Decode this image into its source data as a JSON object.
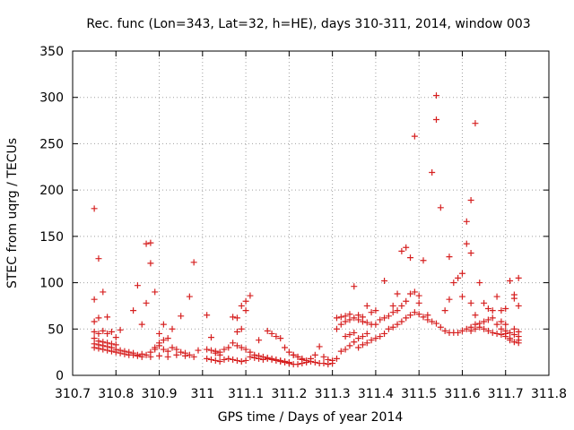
{
  "chart_data": {
    "type": "scatter",
    "title": "Rec. func (Lon=343, Lat=32, h=HE), days 310-311, 2014, window 003",
    "xlabel": "GPS time / Days of year 2014",
    "ylabel": "STEC from uqrg / TECUs",
    "xlim": [
      310.7,
      311.8
    ],
    "ylim": [
      0,
      350
    ],
    "xticks": [
      310.7,
      310.8,
      310.9,
      311.0,
      311.1,
      311.2,
      311.3,
      311.4,
      311.5,
      311.6,
      311.7,
      311.8
    ],
    "xtick_labels": [
      "310.7",
      "310.8",
      "310.9",
      "311",
      "311.1",
      "311.2",
      "311.3",
      "311.4",
      "311.5",
      "311.6",
      "311.7",
      "311.8"
    ],
    "yticks": [
      0,
      50,
      100,
      150,
      200,
      250,
      300,
      350
    ],
    "ytick_labels": [
      "0",
      "50",
      "100",
      "150",
      "200",
      "250",
      "300",
      "350"
    ],
    "grid": true,
    "marker": "+",
    "color": "#d62020",
    "series": [
      {
        "name": "STEC",
        "points": [
          [
            310.75,
            180
          ],
          [
            310.76,
            126
          ],
          [
            310.77,
            90
          ],
          [
            310.75,
            82
          ],
          [
            310.78,
            63
          ],
          [
            310.76,
            62
          ],
          [
            310.75,
            58
          ],
          [
            310.77,
            48
          ],
          [
            310.75,
            47
          ],
          [
            310.76,
            45
          ],
          [
            310.79,
            47
          ],
          [
            310.78,
            45
          ],
          [
            310.81,
            49
          ],
          [
            310.8,
            41
          ],
          [
            310.75,
            40
          ],
          [
            310.76,
            37
          ],
          [
            310.77,
            36
          ],
          [
            310.78,
            35
          ],
          [
            310.79,
            34
          ],
          [
            310.8,
            33
          ],
          [
            310.75,
            34
          ],
          [
            310.76,
            33
          ],
          [
            310.77,
            32
          ],
          [
            310.78,
            31
          ],
          [
            310.79,
            30
          ],
          [
            310.8,
            28
          ],
          [
            310.81,
            27
          ],
          [
            310.82,
            26
          ],
          [
            310.83,
            25
          ],
          [
            310.84,
            24
          ],
          [
            310.75,
            30
          ],
          [
            310.76,
            29
          ],
          [
            310.77,
            28
          ],
          [
            310.78,
            27
          ],
          [
            310.79,
            26
          ],
          [
            310.8,
            25
          ],
          [
            310.81,
            24
          ],
          [
            310.82,
            23
          ],
          [
            310.83,
            22
          ],
          [
            310.84,
            22
          ],
          [
            310.85,
            22
          ],
          [
            310.86,
            23
          ],
          [
            310.85,
            21
          ],
          [
            310.86,
            20
          ],
          [
            310.87,
            22
          ],
          [
            310.88,
            25
          ],
          [
            310.89,
            30
          ],
          [
            310.9,
            35
          ],
          [
            310.91,
            38
          ],
          [
            310.92,
            40
          ],
          [
            310.84,
            70
          ],
          [
            310.85,
            97
          ],
          [
            310.86,
            55
          ],
          [
            310.87,
            78
          ],
          [
            310.87,
            142
          ],
          [
            310.88,
            143
          ],
          [
            310.88,
            121
          ],
          [
            310.89,
            90
          ],
          [
            310.9,
            45
          ],
          [
            310.91,
            55
          ],
          [
            310.89,
            28
          ],
          [
            310.9,
            32
          ],
          [
            310.91,
            28
          ],
          [
            310.92,
            26
          ],
          [
            310.93,
            30
          ],
          [
            310.94,
            28
          ],
          [
            310.95,
            25
          ],
          [
            310.96,
            24
          ],
          [
            310.97,
            22
          ],
          [
            310.98,
            20
          ],
          [
            310.88,
            20
          ],
          [
            310.9,
            21
          ],
          [
            310.92,
            20
          ],
          [
            310.94,
            22
          ],
          [
            310.96,
            21
          ],
          [
            310.93,
            50
          ],
          [
            310.95,
            64
          ],
          [
            310.97,
            85
          ],
          [
            310.98,
            122
          ],
          [
            310.99,
            27
          ],
          [
            311.01,
            65
          ],
          [
            311.02,
            41
          ],
          [
            311.01,
            28
          ],
          [
            311.02,
            27
          ],
          [
            311.03,
            26
          ],
          [
            311.04,
            25
          ],
          [
            311.05,
            28
          ],
          [
            311.06,
            30
          ],
          [
            311.03,
            24
          ],
          [
            311.04,
            22
          ],
          [
            311.01,
            18
          ],
          [
            311.02,
            17
          ],
          [
            311.03,
            16
          ],
          [
            311.04,
            15
          ],
          [
            311.05,
            17
          ],
          [
            311.06,
            18
          ],
          [
            311.07,
            17
          ],
          [
            311.08,
            16
          ],
          [
            311.09,
            15
          ],
          [
            311.1,
            16
          ],
          [
            311.07,
            63
          ],
          [
            311.08,
            62
          ],
          [
            311.08,
            47
          ],
          [
            311.09,
            50
          ],
          [
            311.1,
            80
          ],
          [
            311.11,
            86
          ],
          [
            311.1,
            70
          ],
          [
            311.09,
            75
          ],
          [
            311.07,
            35
          ],
          [
            311.08,
            32
          ],
          [
            311.09,
            30
          ],
          [
            311.1,
            28
          ],
          [
            311.11,
            25
          ],
          [
            311.12,
            22
          ],
          [
            311.13,
            21
          ],
          [
            311.14,
            20
          ],
          [
            311.15,
            19
          ],
          [
            311.16,
            18
          ],
          [
            311.17,
            17
          ],
          [
            311.18,
            16
          ],
          [
            311.11,
            20
          ],
          [
            311.12,
            19
          ],
          [
            311.13,
            18
          ],
          [
            311.14,
            17
          ],
          [
            311.15,
            18
          ],
          [
            311.16,
            17
          ],
          [
            311.17,
            16
          ],
          [
            311.18,
            15
          ],
          [
            311.19,
            14
          ],
          [
            311.2,
            14
          ],
          [
            311.13,
            38
          ],
          [
            311.15,
            48
          ],
          [
            311.16,
            45
          ],
          [
            311.17,
            42
          ],
          [
            311.18,
            40
          ],
          [
            311.19,
            30
          ],
          [
            311.2,
            25
          ],
          [
            311.21,
            22
          ],
          [
            311.22,
            20
          ],
          [
            311.23,
            18
          ],
          [
            311.19,
            15
          ],
          [
            311.2,
            13
          ],
          [
            311.21,
            12
          ],
          [
            311.22,
            12
          ],
          [
            311.23,
            13
          ],
          [
            311.24,
            14
          ],
          [
            311.25,
            15
          ],
          [
            311.26,
            14
          ],
          [
            311.27,
            13
          ],
          [
            311.28,
            13
          ],
          [
            311.21,
            22
          ],
          [
            311.22,
            20
          ],
          [
            311.23,
            17
          ],
          [
            311.24,
            16
          ],
          [
            311.25,
            18
          ],
          [
            311.26,
            22
          ],
          [
            311.27,
            31
          ],
          [
            311.28,
            20
          ],
          [
            311.29,
            17
          ],
          [
            311.3,
            16
          ],
          [
            311.29,
            12
          ],
          [
            311.3,
            13
          ],
          [
            311.31,
            18
          ],
          [
            311.32,
            26
          ],
          [
            311.33,
            28
          ],
          [
            311.34,
            32
          ],
          [
            311.35,
            36
          ],
          [
            311.36,
            40
          ],
          [
            311.37,
            42
          ],
          [
            311.38,
            45
          ],
          [
            311.31,
            50
          ],
          [
            311.32,
            55
          ],
          [
            311.33,
            58
          ],
          [
            311.34,
            60
          ],
          [
            311.35,
            62
          ],
          [
            311.36,
            60
          ],
          [
            311.37,
            58
          ],
          [
            311.38,
            57
          ],
          [
            311.39,
            55
          ],
          [
            311.4,
            55
          ],
          [
            311.31,
            62
          ],
          [
            311.32,
            63
          ],
          [
            311.33,
            64
          ],
          [
            311.34,
            66
          ],
          [
            311.35,
            96
          ],
          [
            311.36,
            65
          ],
          [
            311.37,
            63
          ],
          [
            311.38,
            75
          ],
          [
            311.39,
            68
          ],
          [
            311.4,
            70
          ],
          [
            311.33,
            42
          ],
          [
            311.34,
            44
          ],
          [
            311.35,
            46
          ],
          [
            311.36,
            30
          ],
          [
            311.37,
            33
          ],
          [
            311.38,
            35
          ],
          [
            311.39,
            38
          ],
          [
            311.4,
            40
          ],
          [
            311.41,
            42
          ],
          [
            311.42,
            45
          ],
          [
            311.41,
            60
          ],
          [
            311.42,
            62
          ],
          [
            311.43,
            64
          ],
          [
            311.44,
            68
          ],
          [
            311.45,
            70
          ],
          [
            311.46,
            75
          ],
          [
            311.47,
            80
          ],
          [
            311.48,
            88
          ],
          [
            311.49,
            90
          ],
          [
            311.5,
            86
          ],
          [
            311.42,
            102
          ],
          [
            311.44,
            75
          ],
          [
            311.45,
            88
          ],
          [
            311.46,
            134
          ],
          [
            311.47,
            138
          ],
          [
            311.48,
            127
          ],
          [
            311.49,
            258
          ],
          [
            311.5,
            78
          ],
          [
            311.51,
            124
          ],
          [
            311.52,
            65
          ],
          [
            311.43,
            50
          ],
          [
            311.44,
            52
          ],
          [
            311.45,
            55
          ],
          [
            311.46,
            58
          ],
          [
            311.47,
            62
          ],
          [
            311.48,
            65
          ],
          [
            311.49,
            68
          ],
          [
            311.5,
            66
          ],
          [
            311.51,
            63
          ],
          [
            311.52,
            60
          ],
          [
            311.53,
            219
          ],
          [
            311.54,
            302
          ],
          [
            311.54,
            276
          ],
          [
            311.55,
            181
          ],
          [
            311.53,
            58
          ],
          [
            311.54,
            56
          ],
          [
            311.55,
            52
          ],
          [
            311.56,
            48
          ],
          [
            311.57,
            46
          ],
          [
            311.58,
            46
          ],
          [
            311.56,
            70
          ],
          [
            311.57,
            82
          ],
          [
            311.58,
            100
          ],
          [
            311.59,
            105
          ],
          [
            311.6,
            110
          ],
          [
            311.61,
            166
          ],
          [
            311.61,
            142
          ],
          [
            311.62,
            132
          ],
          [
            311.62,
            189
          ],
          [
            311.63,
            272
          ],
          [
            311.57,
            128
          ],
          [
            311.59,
            46
          ],
          [
            311.6,
            48
          ],
          [
            311.61,
            50
          ],
          [
            311.62,
            52
          ],
          [
            311.63,
            55
          ],
          [
            311.64,
            56
          ],
          [
            311.65,
            58
          ],
          [
            311.66,
            60
          ],
          [
            311.67,
            62
          ],
          [
            311.6,
            85
          ],
          [
            311.62,
            78
          ],
          [
            311.63,
            65
          ],
          [
            311.64,
            100
          ],
          [
            311.65,
            78
          ],
          [
            311.66,
            72
          ],
          [
            311.67,
            70
          ],
          [
            311.68,
            85
          ],
          [
            311.69,
            70
          ],
          [
            311.7,
            72
          ],
          [
            311.62,
            48
          ],
          [
            311.63,
            50
          ],
          [
            311.64,
            52
          ],
          [
            311.65,
            50
          ],
          [
            311.66,
            48
          ],
          [
            311.67,
            46
          ],
          [
            311.68,
            45
          ],
          [
            311.69,
            44
          ],
          [
            311.7,
            42
          ],
          [
            311.71,
            40
          ],
          [
            311.69,
            58
          ],
          [
            311.7,
            55
          ],
          [
            311.71,
            102
          ],
          [
            311.72,
            83
          ],
          [
            311.72,
            87
          ],
          [
            311.73,
            105
          ],
          [
            311.73,
            75
          ],
          [
            311.72,
            50
          ],
          [
            311.73,
            47
          ],
          [
            311.73,
            38
          ],
          [
            311.71,
            38
          ],
          [
            311.72,
            36
          ],
          [
            311.73,
            35
          ],
          [
            311.7,
            45
          ],
          [
            311.68,
            55
          ],
          [
            311.69,
            50
          ],
          [
            311.7,
            48
          ],
          [
            311.71,
            46
          ],
          [
            311.72,
            44
          ],
          [
            311.73,
            42
          ]
        ]
      }
    ]
  }
}
